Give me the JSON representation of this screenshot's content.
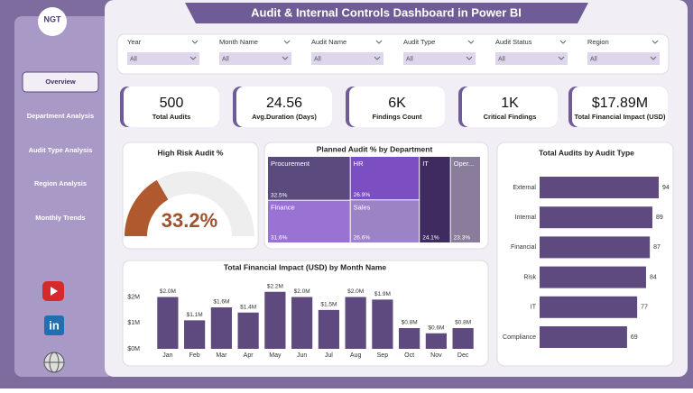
{
  "header": {
    "title": "Audit & Internal Controls Dashboard in Power BI",
    "logo": "NGT"
  },
  "nav": [
    "Overview",
    "Department Analysis",
    "Audit Type Analysis",
    "Region Analysis",
    "Monthly Trends"
  ],
  "social_icons": {
    "linkedin": "in"
  },
  "filters": [
    {
      "label": "Year",
      "value": "All"
    },
    {
      "label": "Month Name",
      "value": "All"
    },
    {
      "label": "Audit Name",
      "value": "All"
    },
    {
      "label": "Audit Type",
      "value": "All"
    },
    {
      "label": "Audit Status",
      "value": "All"
    },
    {
      "label": "Region",
      "value": "All"
    }
  ],
  "kpis": [
    {
      "value": "500",
      "label": "Total Audits"
    },
    {
      "value": "24.56",
      "label": "Avg.Duration (Days)"
    },
    {
      "value": "6K",
      "label": "Findings Count"
    },
    {
      "value": "1K",
      "label": "Critical Findings"
    },
    {
      "value": "$17.89M",
      "label": "Total Financial Impact (USD)"
    }
  ],
  "chart_data": [
    {
      "type": "gauge",
      "title": "High Risk Audit %",
      "values": [
        33.2
      ],
      "value_labels": [
        "33.2%"
      ],
      "ylim": [
        0,
        100
      ],
      "color": "#b0582e"
    },
    {
      "type": "treemap",
      "title": "Planned Audit % by Department",
      "categories": [
        "Procurement",
        "HR",
        "Finance",
        "Sales",
        "IT",
        "Oper..."
      ],
      "values": [
        32.5,
        26.9,
        31.6,
        26.6,
        24.1,
        23.3
      ],
      "value_labels": [
        "32.5%",
        "26.9%",
        "31.6%",
        "26.6%",
        "24.1%",
        "23.3%"
      ],
      "colors": [
        "#5b4a7e",
        "#7b4fc2",
        "#9a72d4",
        "#9b83c6",
        "#3f2b60",
        "#8a7d9c"
      ]
    },
    {
      "type": "hbar",
      "title": "Total Audits by Audit Type",
      "categories": [
        "External",
        "Internal",
        "Financial",
        "Risk",
        "IT",
        "Compliance"
      ],
      "values": [
        94,
        89,
        87,
        84,
        77,
        69
      ],
      "xlim": [
        0,
        94
      ],
      "color": "#5e4a7e"
    },
    {
      "type": "bar",
      "title": "Total Financial Impact (USD) by Month Name",
      "categories": [
        "Jan",
        "Feb",
        "Mar",
        "Apr",
        "May",
        "Jun",
        "Jul",
        "Aug",
        "Sep",
        "Oct",
        "Nov",
        "Dec"
      ],
      "values": [
        2000000,
        1100000,
        1600000,
        1400000,
        2200000,
        2000000,
        1500000,
        2000000,
        1900000,
        800000,
        600000,
        800000
      ],
      "value_labels": [
        "$2.0M",
        "$1.1M",
        "$1.6M",
        "$1.4M",
        "$2.2M",
        "$2.0M",
        "$1.5M",
        "$2.0M",
        "$1.9M",
        "$0.8M",
        "$0.6M",
        "$0.8M"
      ],
      "ylim": [
        0,
        2400000
      ],
      "yticks": [
        {
          "value": 0,
          "label": "$0M"
        },
        {
          "value": 1000000,
          "label": "$1M"
        },
        {
          "value": 2000000,
          "label": "$2M"
        }
      ],
      "color": "#5e4a7e"
    }
  ]
}
